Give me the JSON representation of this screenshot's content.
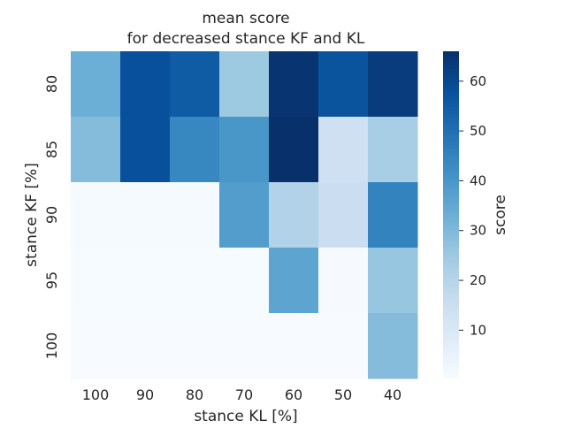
{
  "chart_data": {
    "type": "heatmap",
    "title_line1": "mean score",
    "title_line2": "for decreased stance KF and KL",
    "xlabel": "stance KL [%]",
    "ylabel": "stance KF [%]",
    "x_categories": [
      "100",
      "90",
      "80",
      "70",
      "60",
      "50",
      "40"
    ],
    "y_categories": [
      "80",
      "85",
      "90",
      "95",
      "100"
    ],
    "values": [
      [
        33,
        58,
        55,
        25,
        65,
        57,
        63
      ],
      [
        29,
        58,
        44,
        40,
        66,
        14,
        23
      ],
      [
        1,
        0.8,
        0.9,
        38,
        21,
        15,
        45
      ],
      [
        0.5,
        0.5,
        0.5,
        0.5,
        36,
        0.6,
        26
      ],
      [
        0.3,
        0.3,
        0.3,
        0.3,
        0.3,
        0.3,
        29
      ]
    ],
    "colorbar": {
      "label": "score",
      "vmin": 0.3,
      "vmax": 66,
      "ticks": [
        10,
        20,
        30,
        40,
        50,
        60
      ],
      "tick_labels": [
        "10",
        "20",
        "30",
        "40",
        "50",
        "60"
      ],
      "colormap": "Blues",
      "colormap_stops": [
        "#f7fbff",
        "#deebf7",
        "#c6dbef",
        "#9ecae1",
        "#6baed6",
        "#4292c6",
        "#2171b5",
        "#08519c",
        "#08306b"
      ]
    },
    "grid": false
  }
}
